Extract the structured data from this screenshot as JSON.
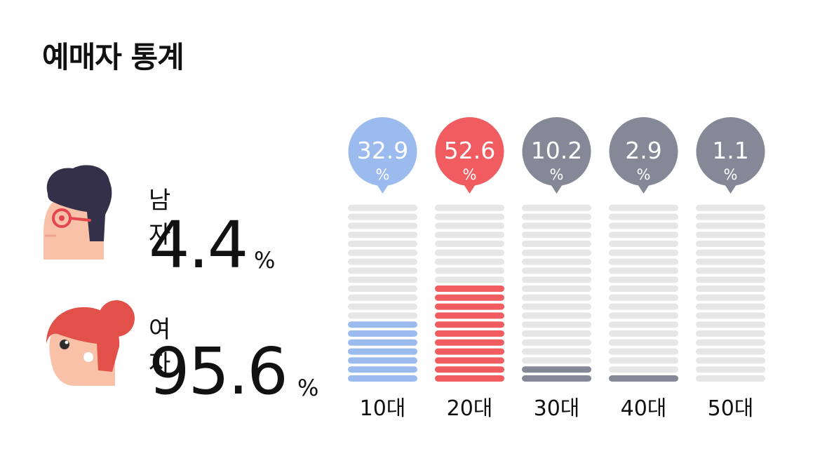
{
  "title": "예매자 통계",
  "gender": {
    "male": {
      "label": "남자",
      "value": "4.4",
      "unit": "%"
    },
    "female": {
      "label": "여자",
      "value": "95.6",
      "unit": "%"
    }
  },
  "colors": {
    "male_accent": "#9bbbee",
    "female_accent": "#f05c5f",
    "neutral_accent": "#858896",
    "empty_bar": "#e6e6e6"
  },
  "chart_data": {
    "type": "bar",
    "categories": [
      "10대",
      "20대",
      "30대",
      "40대",
      "50대"
    ],
    "values": [
      32.9,
      52.6,
      10.2,
      2.9,
      1.1
    ],
    "value_labels": [
      "32.9",
      "52.6",
      "10.2",
      "2.9",
      "1.1"
    ],
    "unit": "%",
    "filled_segments": [
      7,
      11,
      2,
      1,
      0
    ],
    "total_segments": 20,
    "ylim": [
      0,
      100
    ]
  }
}
